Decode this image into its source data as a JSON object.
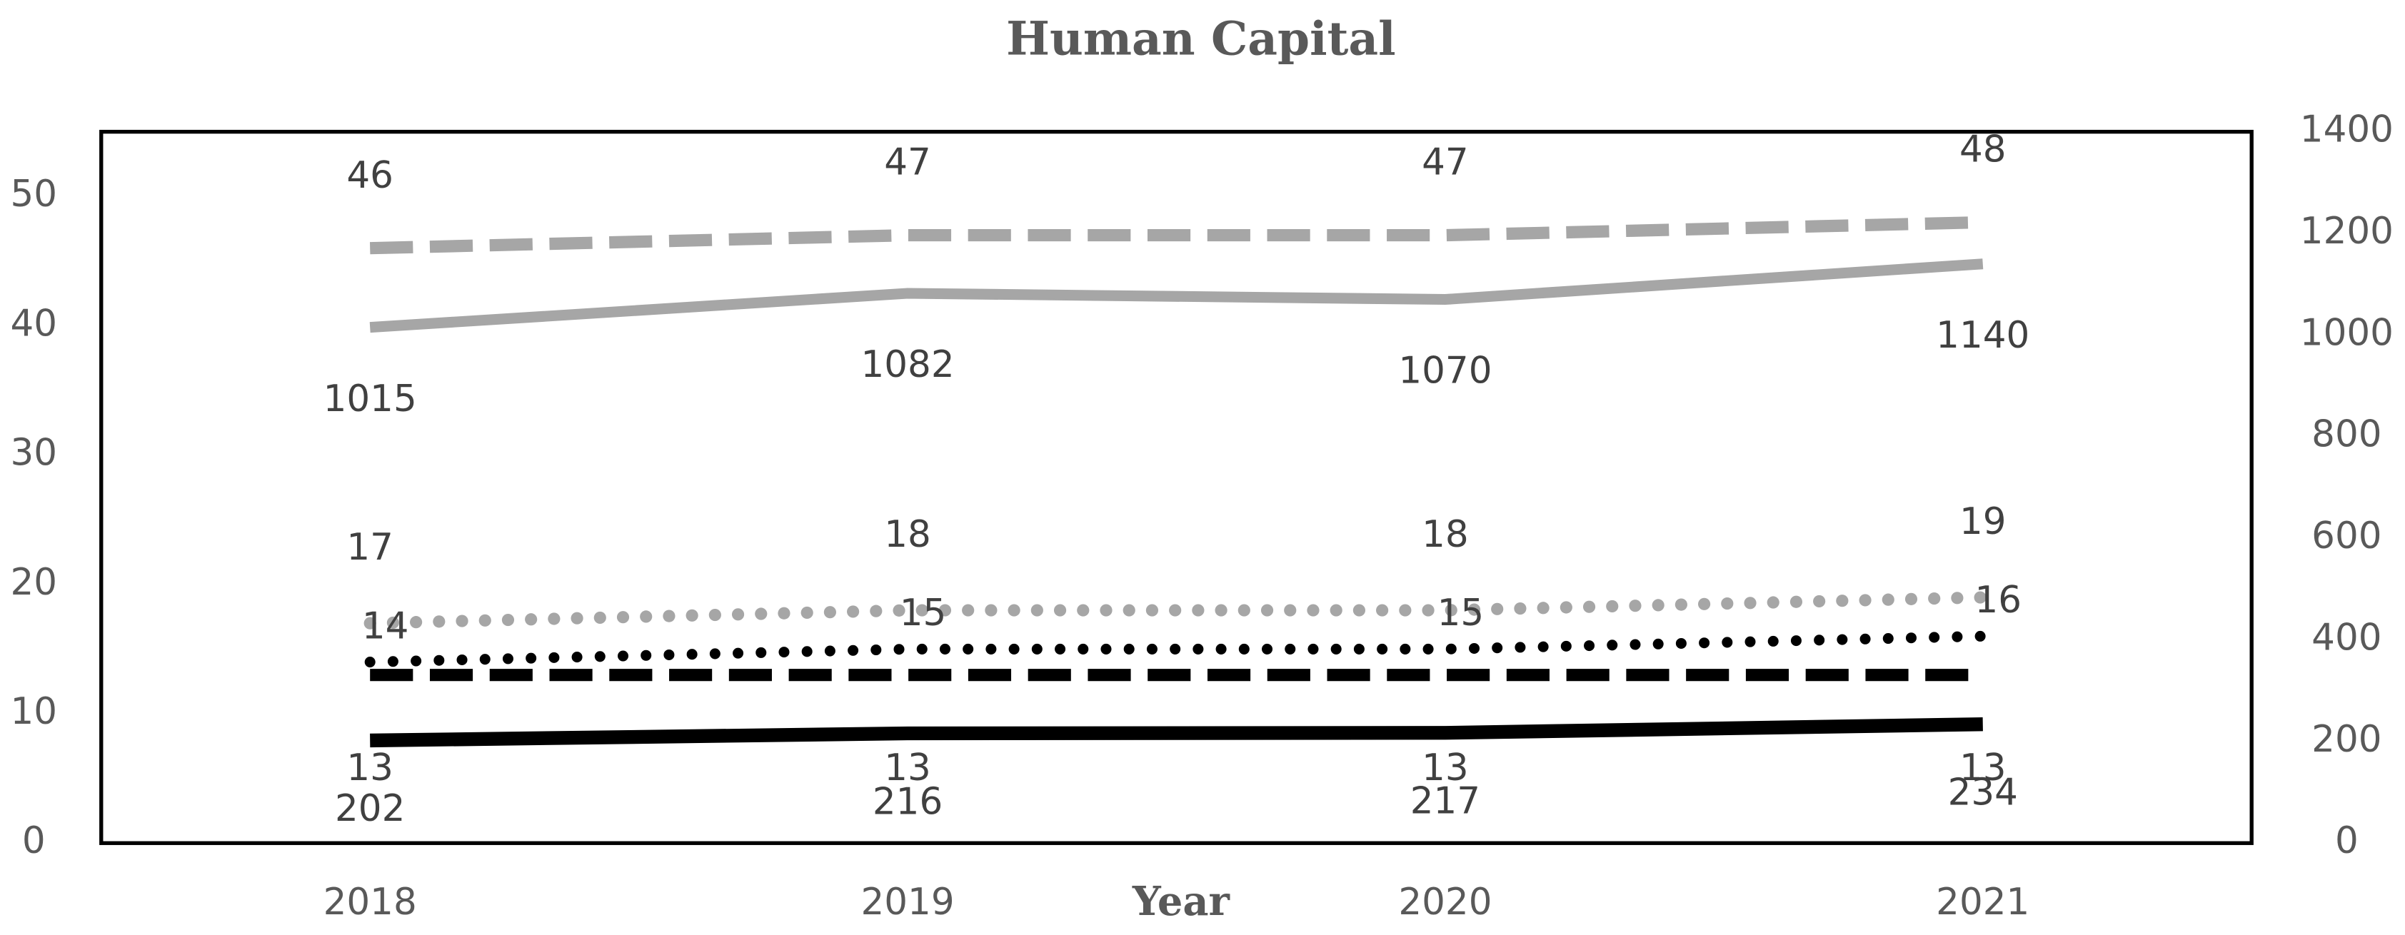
{
  "chart_data": {
    "type": "line",
    "title": "Human Capital",
    "x_label": "Year",
    "categories": [
      "2018",
      "2019",
      "2020",
      "2021"
    ],
    "ylim": [
      0,
      55
    ],
    "yticks": [
      0,
      10,
      20,
      30,
      40,
      50
    ],
    "y2lim": [
      0,
      1400
    ],
    "y2ticks": [
      0,
      200,
      400,
      600,
      800,
      1000,
      1200,
      1400
    ],
    "series": [
      {
        "color": "#a6a6a6",
        "line_style": "dashed",
        "values": [
          46,
          47,
          47,
          48
        ]
      },
      {
        "color": "#a6a6a6",
        "line_style": "solid",
        "axis": "y2",
        "values": [
          1015,
          1082,
          1070,
          1140
        ]
      },
      {
        "color": "#a6a6a6",
        "line_style": "dotted",
        "values": [
          17,
          18,
          18,
          19
        ]
      },
      {
        "color": "#000000",
        "line_style": "dotted",
        "values": [
          14,
          15,
          15,
          16
        ]
      },
      {
        "color": "#000000",
        "line_style": "dashed",
        "values": [
          13,
          13,
          13,
          13
        ]
      },
      {
        "color": "#000000",
        "line_style": "solid",
        "axis": "y2",
        "values": [
          202,
          216,
          217,
          234
        ]
      }
    ]
  }
}
